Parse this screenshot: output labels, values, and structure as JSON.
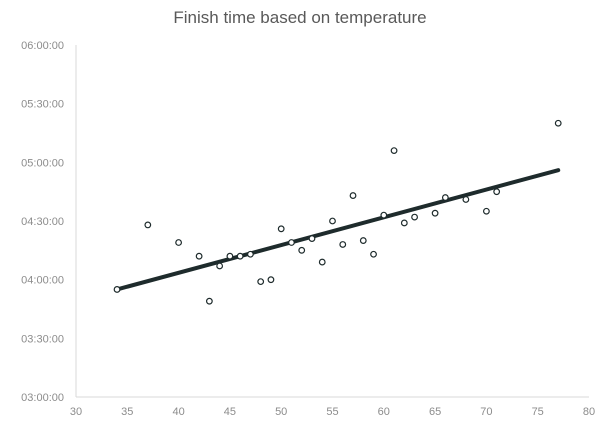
{
  "chart_data": {
    "type": "scatter",
    "title": "Finish time based on temperature",
    "xlabel": "",
    "ylabel": "",
    "xlim": [
      30,
      80
    ],
    "ylim": [
      "03:00:00",
      "06:00:00"
    ],
    "x_ticks": [
      30,
      35,
      40,
      45,
      50,
      55,
      60,
      65,
      70,
      75,
      80
    ],
    "y_ticks": [
      "03:00:00",
      "03:30:00",
      "04:00:00",
      "04:30:00",
      "05:00:00",
      "05:30:00",
      "06:00:00"
    ],
    "grid": false,
    "legend": "none",
    "series": [
      {
        "type": "scatter",
        "marker": "hollow-circle",
        "color": "#1e2b2c",
        "points": [
          [
            34,
            "03:55:00"
          ],
          [
            37,
            "04:28:00"
          ],
          [
            40,
            "04:19:00"
          ],
          [
            42,
            "04:12:00"
          ],
          [
            43,
            "03:49:00"
          ],
          [
            44,
            "04:07:00"
          ],
          [
            45,
            "04:12:00"
          ],
          [
            46,
            "04:12:00"
          ],
          [
            47,
            "04:13:00"
          ],
          [
            48,
            "03:59:00"
          ],
          [
            49,
            "04:00:00"
          ],
          [
            50,
            "04:26:00"
          ],
          [
            51,
            "04:19:00"
          ],
          [
            52,
            "04:15:00"
          ],
          [
            53,
            "04:21:00"
          ],
          [
            54,
            "04:09:00"
          ],
          [
            55,
            "04:30:00"
          ],
          [
            56,
            "04:18:00"
          ],
          [
            57,
            "04:43:00"
          ],
          [
            58,
            "04:20:00"
          ],
          [
            59,
            "04:13:00"
          ],
          [
            60,
            "04:33:00"
          ],
          [
            61,
            "05:06:00"
          ],
          [
            62,
            "04:29:00"
          ],
          [
            63,
            "04:32:00"
          ],
          [
            65,
            "04:34:00"
          ],
          [
            66,
            "04:42:00"
          ],
          [
            68,
            "04:41:00"
          ],
          [
            70,
            "04:35:00"
          ],
          [
            71,
            "04:45:00"
          ],
          [
            77,
            "05:20:00"
          ]
        ]
      },
      {
        "type": "trendline",
        "color": "#1e2b2c",
        "points": [
          [
            34,
            "03:55:00"
          ],
          [
            77,
            "04:56:00"
          ]
        ]
      }
    ]
  }
}
